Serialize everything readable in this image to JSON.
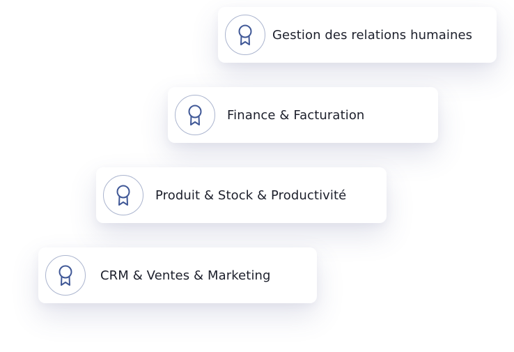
{
  "items": [
    {
      "label": "Gestion des relations humaines",
      "icon": "award-ribbon-icon"
    },
    {
      "label": "Finance & Facturation",
      "icon": "award-ribbon-icon"
    },
    {
      "label": "Produit & Stock & Productivité",
      "icon": "award-ribbon-icon"
    },
    {
      "label": "CRM & Ventes & Marketing",
      "icon": "award-ribbon-icon"
    }
  ],
  "colors": {
    "icon_stroke": "#3f5796",
    "badge_border": "#aab4ce",
    "text": "#1c1f2b",
    "card_background": "#ffffff"
  }
}
